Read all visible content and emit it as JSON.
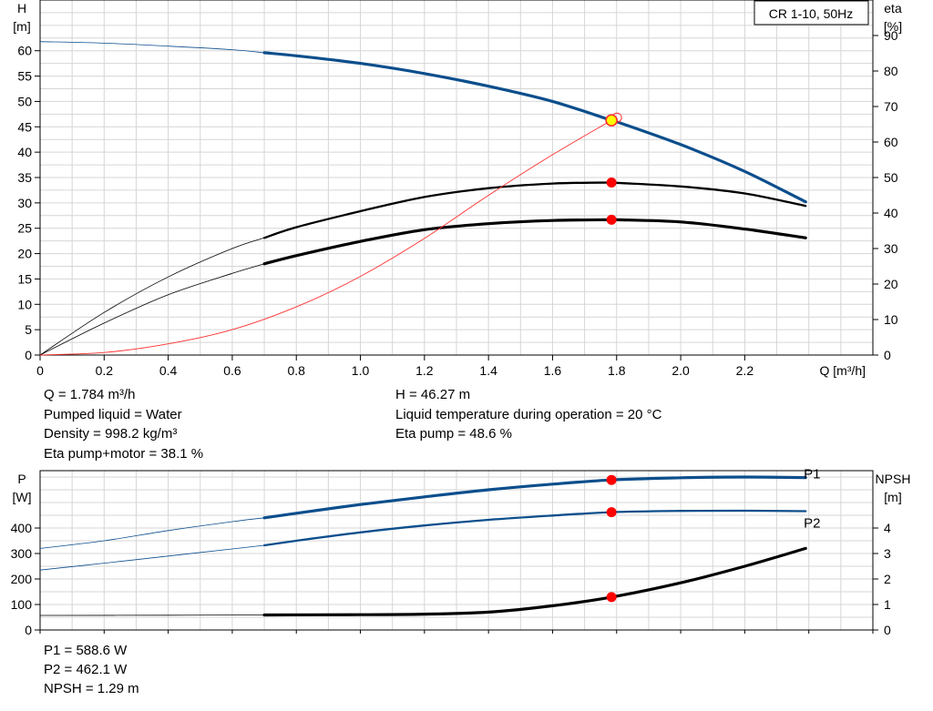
{
  "chart_data": [
    {
      "type": "line",
      "title": "CR 1-10, 50Hz",
      "xlabel": "Q [m³/h]",
      "ylabel_left": [
        "H",
        "[m]"
      ],
      "ylabel_right": [
        "eta",
        "[%]"
      ],
      "xlim": [
        0,
        2.6
      ],
      "ylim_left": [
        0,
        70
      ],
      "ylim_right": [
        0,
        100
      ],
      "grid": true,
      "x_ticks": [
        "0",
        "0.2",
        "0.4",
        "0.6",
        "0.8",
        "1.0",
        "1.2",
        "1.4",
        "1.6",
        "1.8",
        "2.0",
        "2.2"
      ],
      "y_left_ticks": [
        "0",
        "5",
        "10",
        "15",
        "20",
        "25",
        "30",
        "35",
        "40",
        "45",
        "50",
        "55",
        "60"
      ],
      "y_right_ticks": [
        "0",
        "10",
        "20",
        "30",
        "40",
        "50",
        "60",
        "70",
        "80",
        "90"
      ],
      "series": [
        {
          "axis": "left",
          "color": "#0b4e8c",
          "width": 3.2,
          "thin_until": 0.7,
          "x": [
            0,
            0.2,
            0.4,
            0.6,
            0.7,
            0.8,
            1.0,
            1.2,
            1.4,
            1.6,
            1.784,
            1.8,
            2.0,
            2.2,
            2.39
          ],
          "y": [
            61.8,
            61.5,
            60.9,
            60.2,
            59.6,
            59.0,
            57.5,
            55.5,
            53.0,
            50.0,
            46.27,
            46.0,
            41.5,
            36.2,
            30.2
          ]
        },
        {
          "axis": "right",
          "color": "#000000",
          "width": 2.3,
          "thin_until": 0.7,
          "x": [
            0,
            0.2,
            0.4,
            0.6,
            0.7,
            0.8,
            1.0,
            1.2,
            1.4,
            1.6,
            1.784,
            1.8,
            2.0,
            2.2,
            2.39
          ],
          "y": [
            0,
            12,
            22,
            30,
            33,
            36,
            40.5,
            44.5,
            47,
            48.3,
            48.6,
            48.5,
            47.5,
            45.5,
            42
          ]
        },
        {
          "axis": "right",
          "color": "#000000",
          "width": 3.2,
          "thin_until": 0.7,
          "x": [
            0,
            0.2,
            0.4,
            0.6,
            0.7,
            0.8,
            1.0,
            1.2,
            1.4,
            1.6,
            1.784,
            1.8,
            2.0,
            2.2,
            2.39
          ],
          "y": [
            0,
            9,
            17,
            23,
            25.7,
            28,
            32,
            35.3,
            37,
            37.9,
            38.1,
            38.1,
            37.5,
            35.5,
            33
          ]
        },
        {
          "axis": "left",
          "color": "#ff3030",
          "width": 0.9,
          "thin_until": 0,
          "x": [
            0,
            0.2,
            0.4,
            0.6,
            0.8,
            1.0,
            1.2,
            1.4,
            1.6,
            1.784
          ],
          "y": [
            0,
            0.5,
            2.2,
            5,
            9.5,
            15.5,
            23,
            31.5,
            39.5,
            46.27
          ]
        }
      ],
      "operating_points": [
        {
          "x": 1.784,
          "y": 46.27,
          "axis": "left",
          "style": "yellow"
        },
        {
          "x": 1.784,
          "y": 48.6,
          "axis": "right",
          "style": "red"
        },
        {
          "x": 1.784,
          "y": 38.1,
          "axis": "right",
          "style": "red"
        }
      ]
    },
    {
      "type": "line",
      "xlim": [
        0,
        2.6
      ],
      "ylabel_left": [
        "P",
        "[W]"
      ],
      "ylabel_right": [
        "NPSH",
        "[m]"
      ],
      "ylim_left": [
        0,
        625
      ],
      "ylim_right": [
        0,
        6.25
      ],
      "grid": true,
      "y_left_ticks": [
        "0",
        "100",
        "200",
        "300",
        "400"
      ],
      "y_right_ticks": [
        "0",
        "1",
        "2",
        "3",
        "4"
      ],
      "series": [
        {
          "name": "P1",
          "axis": "left",
          "color": "#0b4e8c",
          "width": 3.2,
          "thin_until": 0.7,
          "x": [
            0,
            0.2,
            0.4,
            0.6,
            0.7,
            0.8,
            1.0,
            1.2,
            1.4,
            1.6,
            1.784,
            2.0,
            2.2,
            2.39
          ],
          "y": [
            320,
            350,
            390,
            425,
            440,
            458,
            492,
            522,
            550,
            572,
            588.6,
            597,
            600,
            598
          ]
        },
        {
          "name": "P2",
          "axis": "left",
          "color": "#0b4e8c",
          "width": 2.3,
          "thin_until": 0.7,
          "x": [
            0,
            0.2,
            0.4,
            0.6,
            0.7,
            0.8,
            1.0,
            1.2,
            1.4,
            1.6,
            1.784,
            2.0,
            2.2,
            2.39
          ],
          "y": [
            235,
            262,
            290,
            318,
            332,
            350,
            383,
            410,
            432,
            449,
            462.1,
            467,
            468,
            466
          ]
        },
        {
          "axis": "right",
          "color": "#000000",
          "width": 3.2,
          "thin_until": 0.7,
          "x": [
            0,
            0.4,
            0.7,
            1.0,
            1.2,
            1.4,
            1.6,
            1.784,
            2.0,
            2.2,
            2.39
          ],
          "y": [
            0.57,
            0.58,
            0.59,
            0.6,
            0.62,
            0.7,
            0.95,
            1.29,
            1.85,
            2.5,
            3.2
          ]
        }
      ],
      "labels": [
        {
          "text": "P1",
          "x": 2.35,
          "y": 612,
          "axis": "left"
        },
        {
          "text": "P2",
          "x": 2.35,
          "y": 420,
          "axis": "left"
        }
      ],
      "operating_points": [
        {
          "x": 1.784,
          "y": 588.6,
          "axis": "left",
          "style": "red"
        },
        {
          "x": 1.784,
          "y": 462.1,
          "axis": "left",
          "style": "red"
        },
        {
          "x": 1.784,
          "y": 1.29,
          "axis": "right",
          "style": "red"
        }
      ]
    }
  ],
  "info_top": {
    "q": "Q = 1.784 m³/h",
    "liquid": "Pumped liquid = Water",
    "density": "Density = 998.2 kg/m³",
    "eta_pm": "Eta pump+motor = 38.1 %",
    "h": "H = 46.27 m",
    "temp": "Liquid temperature during operation = 20 °C",
    "eta_pump": "Eta pump = 48.6 %"
  },
  "info_bottom": {
    "p1": "P1 = 588.6 W",
    "p2": "P2 = 462.1 W",
    "npsh": "NPSH = 1.29 m"
  }
}
